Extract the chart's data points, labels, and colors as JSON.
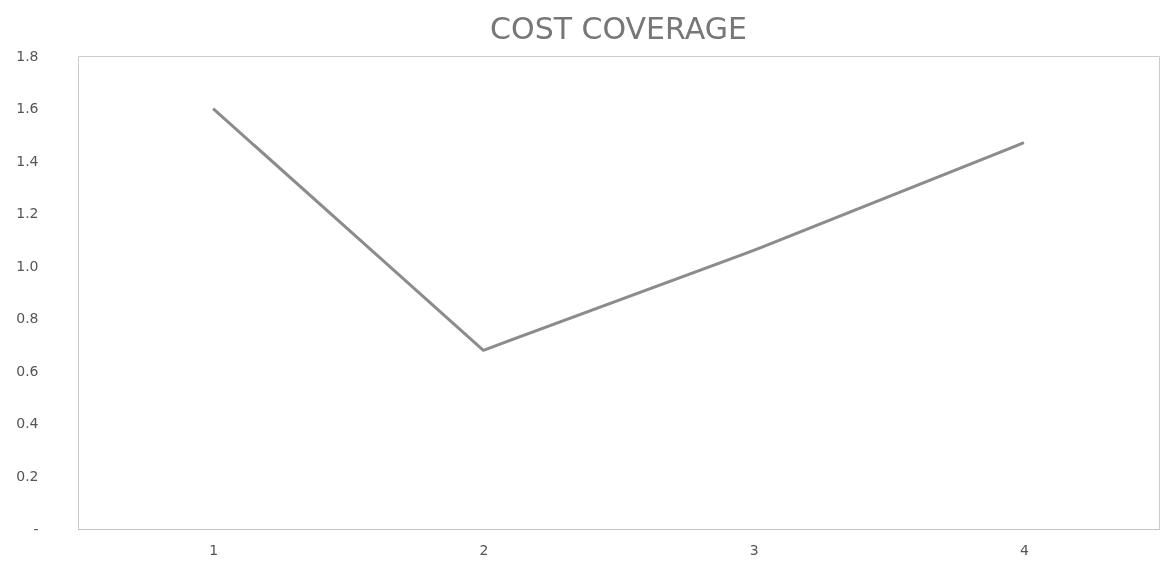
{
  "chart_data": {
    "type": "line",
    "title": "COST COVERAGE",
    "categories": [
      "1",
      "2",
      "3",
      "4"
    ],
    "series": [
      {
        "color": "#8c8c8c",
        "values": [
          1.6,
          0.68,
          1.06,
          1.47
        ]
      }
    ],
    "ylim": [
      0,
      1.8
    ],
    "yticks": [
      {
        "value": 0,
        "label": "-"
      },
      0.2,
      0.4,
      0.6,
      0.8,
      {
        "value": 1,
        "label": "1.0"
      },
      1.2,
      1.4,
      1.6,
      1.8
    ],
    "grid": false,
    "marker": "none",
    "line_style": "solid"
  }
}
